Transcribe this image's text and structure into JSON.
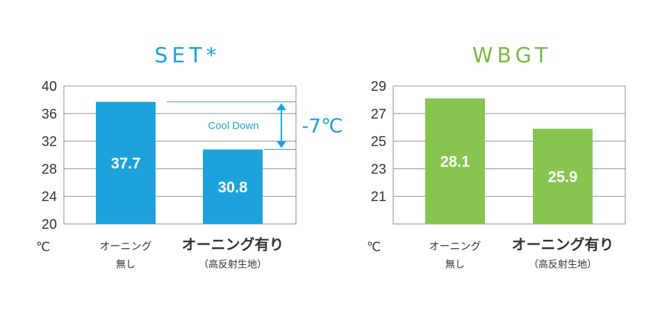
{
  "colors": {
    "set_accent": "#1aa0dd",
    "wbgt_accent": "#7ab840",
    "bar_set": "#1ea2dc",
    "bar_wbgt": "#87c550",
    "grid": "#8a8a8a",
    "text": "#333333"
  },
  "annotation": {
    "label": "Cool Down",
    "delta": "-7℃"
  },
  "chart_data": [
    {
      "type": "bar",
      "title": "SET*",
      "unit": "℃",
      "ylim": [
        20,
        40
      ],
      "yticks": [
        20,
        24,
        28,
        32,
        36,
        40
      ],
      "categories": [
        {
          "line1": "オーニング",
          "line2": "無し"
        },
        {
          "line1": "オーニング有り",
          "line2": "（高反射生地）"
        }
      ],
      "values": [
        37.7,
        30.8
      ],
      "value_labels": [
        "37.7",
        "30.8"
      ],
      "grid": true
    },
    {
      "type": "bar",
      "title": "WBGT",
      "unit": "℃",
      "ylim": [
        19,
        29
      ],
      "yticks": [
        21,
        23,
        25,
        27,
        29
      ],
      "categories": [
        {
          "line1": "オーニング",
          "line2": "無し"
        },
        {
          "line1": "オーニング有り",
          "line2": "（高反射生地）"
        }
      ],
      "values": [
        28.1,
        25.9
      ],
      "value_labels": [
        "28.1",
        "25.9"
      ],
      "grid": true
    }
  ]
}
